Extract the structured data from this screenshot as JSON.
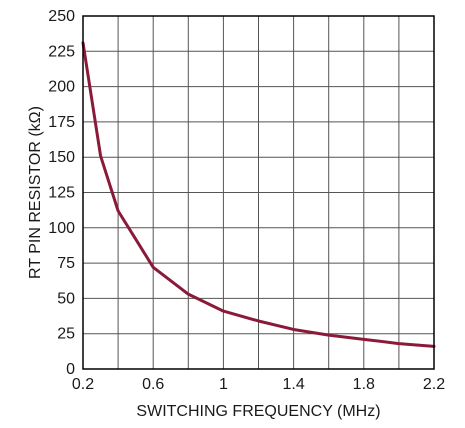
{
  "chart_data": {
    "type": "line",
    "title": "",
    "xlabel": "SWITCHING FREQUENCY (MHz)",
    "ylabel": "RT PIN RESISTOR (kΩ)",
    "xlim": [
      0.2,
      2.2
    ],
    "ylim": [
      0,
      250
    ],
    "x_ticks": [
      0.2,
      0.4,
      0.6,
      0.8,
      1.0,
      1.2,
      1.4,
      1.6,
      1.8,
      2.0,
      2.2
    ],
    "x_tick_labels": [
      "0.2",
      "",
      "0.6",
      "",
      "1",
      "",
      "1.4",
      "",
      "1.8",
      "",
      "2.2"
    ],
    "y_ticks": [
      0,
      25,
      50,
      75,
      100,
      125,
      150,
      175,
      200,
      225,
      250
    ],
    "y_tick_labels": [
      "0",
      "25",
      "50",
      "75",
      "100",
      "125",
      "150",
      "175",
      "200",
      "225",
      "250"
    ],
    "grid": true,
    "legend": "none",
    "series": [
      {
        "color": "#8b1a3a",
        "x": [
          0.2,
          0.3,
          0.4,
          0.5,
          0.6,
          0.8,
          1.0,
          1.2,
          1.4,
          1.6,
          1.8,
          2.0,
          2.2
        ],
        "y": [
          231,
          151,
          112,
          92,
          72,
          53,
          41,
          34,
          28,
          24,
          21,
          18,
          16
        ]
      }
    ]
  }
}
